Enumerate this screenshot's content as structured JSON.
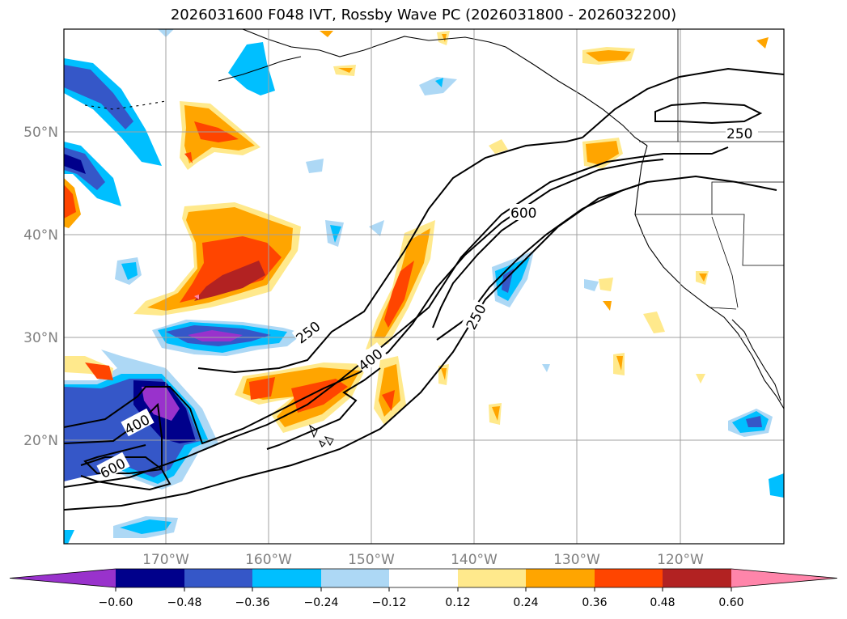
{
  "title": "2026031600 F048 IVT, Rossby Wave PC (2026031800 - 2026032200)",
  "lat_ticks": [
    "50°N",
    "40°N",
    "30°N",
    "20°N"
  ],
  "lon_ticks": [
    "170°W",
    "160°W",
    "150°W",
    "140°W",
    "130°W",
    "120°W"
  ],
  "colorbar": {
    "ticks": [
      "−0.60",
      "−0.48",
      "−0.36",
      "−0.24",
      "−0.12",
      "0.12",
      "0.24",
      "0.36",
      "0.48",
      "0.60"
    ],
    "colors": [
      "#9932cc",
      "#00008b",
      "#3557c8",
      "#00bfff",
      "#add8f5",
      "#ffffff",
      "#ffe98c",
      "#ffa500",
      "#ff4500",
      "#b22222",
      "#ff85aa"
    ]
  },
  "ivt_contour_labels": [
    "250",
    "250",
    "250",
    "400",
    "400",
    "600",
    "600"
  ],
  "colors": {
    "neg_violet": "#9932cc",
    "neg_navy": "#00008b",
    "neg_blue": "#3557c8",
    "neg_sky": "#00bfff",
    "neg_light": "#add8f5",
    "pos_yellow": "#ffe98c",
    "pos_orange": "#ffa500",
    "pos_red": "#ff4500",
    "pos_dark": "#b22222",
    "pos_pink": "#ff85aa"
  }
}
